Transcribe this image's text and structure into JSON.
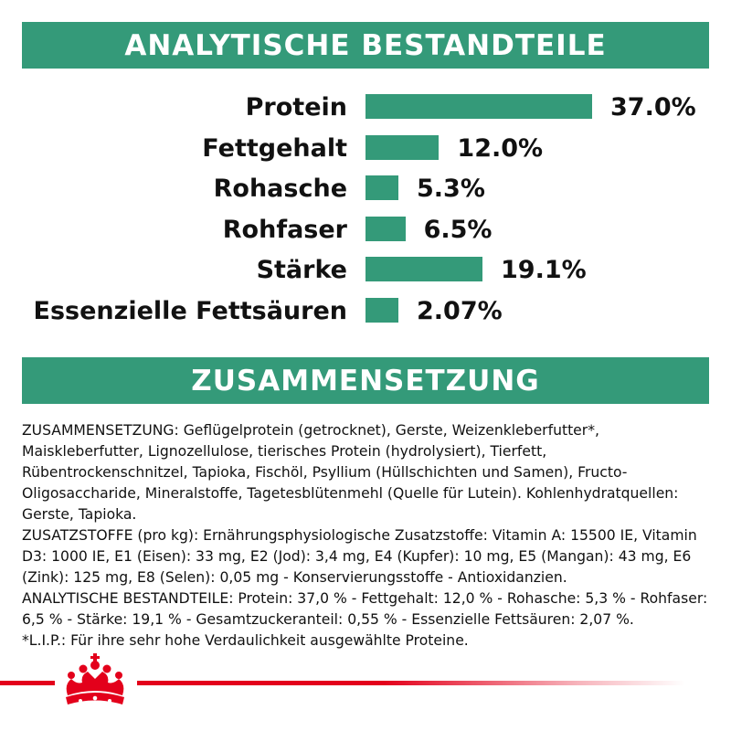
{
  "analysis": {
    "title": "ANALYTISCHE BESTANDTEILE"
  },
  "chart_data": {
    "type": "bar",
    "categories": [
      "Protein",
      "Fettgehalt",
      "Rohasche",
      "Rohfaser",
      "Stärke",
      "Essenzielle Fettsäuren"
    ],
    "values": [
      37.0,
      12.0,
      5.3,
      6.5,
      19.1,
      2.07
    ],
    "value_labels": [
      "37.0%",
      "12.0%",
      "5.3%",
      "6.5%",
      "19.1%",
      "2.07%"
    ],
    "title": "",
    "xlabel": "",
    "ylabel": "",
    "grid": false,
    "colors": {
      "bar": "#349a79"
    }
  },
  "composition": {
    "title": "ZUSAMMENSETZUNG",
    "lines": [
      "ZUSAMMENSETZUNG: Geflügelprotein (getrocknet), Gerste, Weizenkleberfutter*,",
      "Maiskleberfutter, Lignozellulose, tierisches Protein (hydrolysiert), Tierfett,",
      "Rübentrockenschnitzel, Tapioka, Fischöl, Psyllium (Hüllschichten und Samen), Fructo-",
      "Oligosaccharide, Mineralstoffe, Tagetesblütenmehl (Quelle für Lutein). Kohlenhydratquellen:",
      "Gerste, Tapioka.",
      "ZUSATZSTOFFE (pro kg): Ernährungsphysiologische Zusatzstoffe: Vitamin A: 15500 IE, Vitamin",
      "D3: 1000 IE, E1 (Eisen): 33 mg, E2 (Jod): 3,4 mg, E4 (Kupfer): 10 mg, E5 (Mangan): 43 mg, E6",
      "(Zink): 125 mg, E8 (Selen): 0,05 mg - Konservierungsstoffe - Antioxidanzien.",
      "ANALYTISCHE BESTANDTEILE: Protein: 37,0 % - Fettgehalt: 12,0 % - Rohasche: 5,3 % - Rohfaser:",
      "6,5 % - Stärke: 19,1 % - Gesamtzuckeranteil: 0,55 % - Essenzielle Fettsäuren: 2,07 %.",
      "*L.I.P.: Für ihre sehr hohe Verdaulichkeit ausgewählte Proteine."
    ]
  },
  "branding": {
    "logo_icon": "crown-icon",
    "accent_color": "#e3001b"
  }
}
